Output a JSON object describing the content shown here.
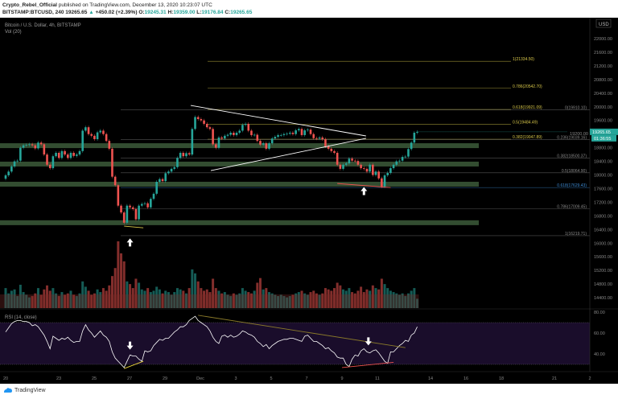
{
  "header": {
    "author": "Crypto_Rebel_Official",
    "published": "published on TradingView.com, December 13, 2020 10:23:07 UTC",
    "symbol": "BITSTAMP:BTCUSD, 240",
    "last": "19265.65",
    "change": "+450.02 (+2.39%)",
    "o_label": "O:",
    "o": "19245.31",
    "h_label": "H:",
    "h": "19359.00",
    "l_label": "L:",
    "l": "19176.84",
    "c_label": "C:",
    "c": "19265.65"
  },
  "legend": {
    "title": "Bitcoin / U.S. Dollar, 4h, BITSTAMP",
    "volume": "Vol (20)",
    "rsi": "RSI (14, close)"
  },
  "price_axis": {
    "currency": "USD",
    "last_price": "19265.65",
    "countdown": "01:36:55"
  },
  "footer": {
    "brand": "TradingView"
  },
  "colors": {
    "up": "#26a69a",
    "down": "#ef5350",
    "fib_left": "#d9c84a",
    "fib_right": "#8a8a8a",
    "fib_highlight": "#3d8bd4",
    "zone": "#3c5a3a",
    "rsi_band": "#1a0d2b"
  },
  "chart_data": {
    "type": "candlestick",
    "interval": "4h",
    "start": "Nov 20",
    "ylim": [
      14200,
      22200
    ],
    "yticks": [
      22000,
      21600,
      21200,
      20800,
      20400,
      20000,
      19600,
      19200,
      18800,
      18400,
      18000,
      17600,
      17200,
      16800,
      16400,
      16000,
      15600,
      15200,
      14800,
      14400
    ],
    "xticks": [
      {
        "day": 0,
        "label": "20"
      },
      {
        "day": 3,
        "label": "23"
      },
      {
        "day": 5,
        "label": "25"
      },
      {
        "day": 7,
        "label": "27"
      },
      {
        "day": 9,
        "label": "29"
      },
      {
        "day": 11,
        "label": "Dec"
      },
      {
        "day": 13,
        "label": "3"
      },
      {
        "day": 15,
        "label": "5"
      },
      {
        "day": 17,
        "label": "7"
      },
      {
        "day": 19,
        "label": "9"
      },
      {
        "day": 21,
        "label": "11"
      },
      {
        "day": 24,
        "label": "14"
      },
      {
        "day": 26,
        "label": "16"
      },
      {
        "day": 28,
        "label": "18"
      },
      {
        "day": 31,
        "label": "21"
      },
      {
        "day": 33,
        "label": "2"
      }
    ],
    "close": [
      17990,
      18100,
      18250,
      18400,
      18420,
      18800,
      18870,
      18880,
      18900,
      18870,
      18780,
      18950,
      18900,
      18600,
      18300,
      18200,
      18550,
      18650,
      18500,
      18700,
      18600,
      18500,
      18650,
      18560,
      18600,
      18700,
      19300,
      19400,
      19200,
      19150,
      19050,
      19250,
      19300,
      19200,
      19000,
      18770,
      17950,
      17700,
      17100,
      16900,
      16600,
      17100,
      17050,
      17000,
      16700,
      17100,
      17150,
      17170,
      17050,
      17300,
      17450,
      17800,
      17880,
      17820,
      18050,
      18100,
      18180,
      18230,
      18500,
      18650,
      18550,
      18640,
      18600,
      19350,
      19700,
      19640,
      19600,
      19500,
      19400,
      19350,
      18900,
      18800,
      19100,
      19070,
      19150,
      19180,
      19240,
      19170,
      19240,
      19300,
      19470,
      19500,
      19300,
      19170,
      19180,
      19000,
      18890,
      18930,
      18770,
      18930,
      19070,
      19120,
      19170,
      19170,
      19200,
      19210,
      19240,
      19200,
      19310,
      19350,
      19170,
      19310,
      19330,
      19200,
      19080,
      19070,
      19100,
      19050,
      18840,
      18770,
      18700,
      18650,
      18300,
      18180,
      18300,
      18340,
      18480,
      18420,
      18410,
      18300,
      18200,
      18180,
      18100,
      18300,
      18000,
      18100,
      17900,
      17660,
      17990,
      18060,
      18200,
      18300,
      18400,
      18420,
      18530,
      18540,
      18760,
      18950,
      19240,
      19265.65
    ],
    "volume": [
      30,
      22,
      26,
      28,
      18,
      35,
      24,
      20,
      16,
      18,
      22,
      30,
      20,
      28,
      34,
      26,
      30,
      22,
      18,
      24,
      20,
      22,
      26,
      20,
      18,
      22,
      40,
      32,
      26,
      20,
      22,
      28,
      24,
      30,
      26,
      34,
      48,
      60,
      100,
      82,
      70,
      40,
      36,
      30,
      44,
      38,
      28,
      26,
      30,
      24,
      26,
      32,
      28,
      22,
      26,
      24,
      20,
      24,
      30,
      28,
      26,
      22,
      30,
      58,
      52,
      40,
      30,
      26,
      28,
      24,
      44,
      30,
      26,
      22,
      24,
      20,
      18,
      22,
      20,
      22,
      30,
      26,
      24,
      22,
      26,
      38,
      45,
      28,
      30,
      24,
      22,
      20,
      18,
      20,
      18,
      16,
      18,
      20,
      22,
      24,
      26,
      22,
      20,
      24,
      26,
      22,
      20,
      22,
      30,
      28,
      26,
      30,
      38,
      34,
      28,
      26,
      30,
      24,
      22,
      26,
      32,
      24,
      28,
      26,
      34,
      30,
      28,
      44,
      36,
      30,
      26,
      24,
      22,
      20,
      22,
      18,
      22,
      26,
      30,
      14
    ],
    "rsi": [
      61,
      65,
      69,
      71,
      72,
      72,
      71,
      71,
      70,
      67,
      68,
      66,
      62,
      58,
      52,
      45,
      57,
      55,
      53,
      55,
      54,
      56,
      53,
      51,
      52,
      52,
      62,
      68,
      63,
      60,
      56,
      59,
      62,
      58,
      56,
      52,
      42,
      36,
      33,
      30,
      27,
      33,
      39,
      38,
      38,
      35,
      33,
      43,
      42,
      43,
      48,
      51,
      54,
      53,
      55,
      55,
      58,
      61,
      63,
      66,
      66,
      68,
      72,
      74,
      76,
      72,
      70,
      68,
      66,
      62,
      56,
      52,
      50,
      57,
      58,
      56,
      58,
      56,
      57,
      59,
      62,
      61,
      59,
      58,
      56,
      52,
      50,
      47,
      49,
      45,
      48,
      50,
      52,
      53,
      54,
      54,
      55,
      55,
      54,
      53,
      52,
      57,
      58,
      55,
      52,
      52,
      50,
      48,
      45,
      46,
      43,
      41,
      37,
      36,
      36,
      30,
      28,
      35,
      39,
      38,
      43,
      45,
      42,
      41,
      43,
      44,
      41,
      37,
      33,
      31,
      42,
      42,
      45,
      48,
      50,
      53,
      52,
      58,
      60,
      66
    ],
    "rsi_axis": {
      "ticks": [
        "80.00",
        "60.00",
        "40.00"
      ],
      "values": [
        80,
        60,
        40
      ],
      "bands": [
        70,
        30
      ]
    },
    "zones": [
      18860,
      18320,
      17730,
      16600
    ],
    "fib_left": [
      {
        "label": "1(21334.50)",
        "price": 21334.5
      },
      {
        "label": "0.786(20542.70)",
        "price": 20542.7
      },
      {
        "label": "0.618(19921.09)",
        "price": 19921.09
      },
      {
        "label": "0.5(19484.49)",
        "price": 19484.49
      },
      {
        "label": "0.382(19047.89)",
        "price": 19047.89
      }
    ],
    "fib_right": [
      {
        "label": "0(19910.10)",
        "price": 19910.1
      },
      {
        "label": "0.236(19039.16)",
        "price": 19039.16
      },
      {
        "label": "0.382(18500.37)",
        "price": 18500.37
      },
      {
        "label": "0.5(18064.90)",
        "price": 18064.9
      },
      {
        "label": "0.618(17629.43)",
        "price": 17629.43,
        "highlight": true
      },
      {
        "label": "0.786(17009.45)",
        "price": 17009.45
      },
      {
        "label": "1(16219.71)",
        "price": 16219.71
      }
    ],
    "trendlines": [
      {
        "color": "#ffffff",
        "from": [
          62.5,
          20040
        ],
        "to": [
          121.7,
          19145
        ]
      },
      {
        "color": "#ffffff",
        "from": [
          69.3,
          18130
        ],
        "to": [
          121.7,
          19075
        ]
      },
      {
        "color": "#ef5350",
        "from": [
          112,
          17750
        ],
        "to": [
          130,
          17630
        ]
      },
      {
        "color": "#d9c84a",
        "from": [
          40,
          16500
        ],
        "to": [
          46.5,
          16450
        ]
      }
    ],
    "rsi_lines": [
      {
        "color": "#8a7a2a",
        "from": [
          65,
          77
        ],
        "to": [
          135,
          46
        ]
      },
      {
        "color": "#e8d23a",
        "from": [
          40,
          26
        ],
        "to": [
          46.5,
          33
        ]
      },
      {
        "color": "#ef5350",
        "from": [
          113.6,
          27
        ],
        "to": [
          131,
          32
        ]
      }
    ],
    "arrows_up": [
      [
        42,
        16020
      ],
      [
        121,
        17530
      ]
    ],
    "arrows_down": [
      [
        42,
        48
      ],
      [
        122.5,
        52
      ]
    ]
  }
}
